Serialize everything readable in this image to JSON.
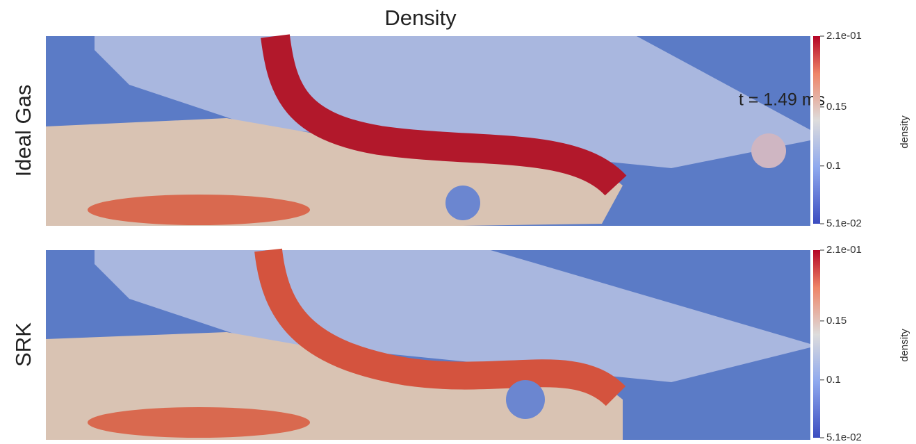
{
  "title": "Density",
  "annotation": "t = 1.49 ms",
  "panels": [
    {
      "label": "Ideal Gas",
      "colorbar": {
        "title": "density",
        "range": [
          0.051,
          0.21
        ],
        "ticks": [
          {
            "value": 0.21,
            "label": "2.1e-01"
          },
          0.15,
          0.1,
          {
            "value": 0.051,
            "label": "5.1e-02"
          }
        ]
      }
    },
    {
      "label": "SRK",
      "colorbar": {
        "title": "density",
        "range": [
          0.051,
          0.21
        ],
        "ticks": [
          {
            "value": 0.21,
            "label": "2.1e-01"
          },
          0.15,
          0.1,
          {
            "value": 0.051,
            "label": "5.1e-02"
          }
        ]
      }
    }
  ]
}
